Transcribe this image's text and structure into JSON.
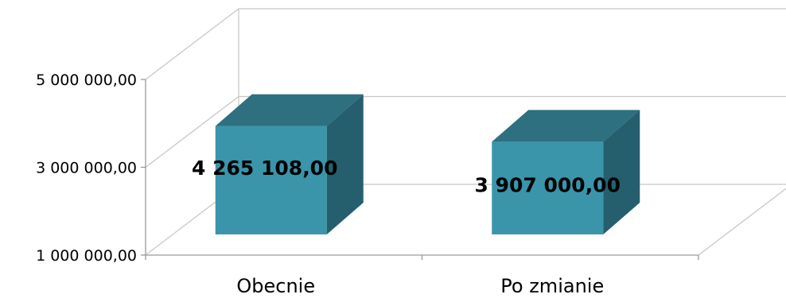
{
  "chart_data": {
    "type": "bar",
    "style": "3d-column",
    "categories": [
      "Obecnie",
      "Po zmianie"
    ],
    "values": [
      4265108,
      3907000
    ],
    "value_labels": [
      "4 265 108,00",
      "3 907 000,00"
    ],
    "ylim": [
      1000000,
      5000000
    ],
    "yticks": [
      1000000,
      3000000,
      5000000
    ],
    "ytick_labels": [
      "1 000 000,00",
      "3 000 000,00",
      "5 000 000,00"
    ],
    "title": "",
    "xlabel": "",
    "ylabel": "",
    "grid": true,
    "legend": false,
    "colors": {
      "bar_front": "#3a95aa",
      "bar_top": "#2e6f80",
      "bar_side": "#255f6e",
      "grid": "#c8c8c8",
      "axis": "#999999"
    }
  }
}
